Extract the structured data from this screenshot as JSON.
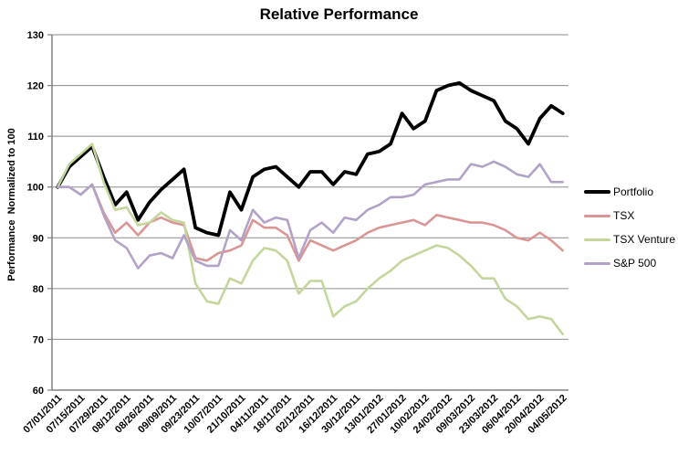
{
  "chart_data": {
    "type": "line",
    "title": "Relative Performance",
    "ylabel": "Performance  Normalized to 100",
    "ylim": [
      60,
      130
    ],
    "yticks": [
      60,
      70,
      80,
      90,
      100,
      110,
      120,
      130
    ],
    "n_points": 45,
    "x_label_every": 2,
    "x_tick_labels": [
      "07/01/2011",
      "07/15/2011",
      "07/29/2011",
      "08/12/2011",
      "08/26/2011",
      "09/09/2011",
      "09/23/2011",
      "10/07/2011",
      "21/10/2011",
      "04/11/2011",
      "18/11/2011",
      "02/12/2011",
      "16/12/2011",
      "30/12/2011",
      "13/01/2012",
      "27/01/2012",
      "10/02/2012",
      "24/02/2012",
      "09/03/2012",
      "23/03/2012",
      "06/04/2012",
      "20/04/2012",
      "04/05/2012"
    ],
    "grid": "horizontal",
    "legend_position": "right",
    "axis_color": "#808080",
    "grid_color": "#8C8C8C",
    "text_color": "#000000",
    "series": [
      {
        "name": "Portfolio",
        "color": "#000000",
        "stroke_width": 3.8,
        "values": [
          100,
          104,
          106,
          108,
          102,
          96.5,
          99,
          93.5,
          97,
          99.5,
          101.5,
          103.5,
          92,
          91,
          90.5,
          99,
          95.5,
          102,
          103.5,
          104,
          102,
          100,
          103,
          103,
          100.5,
          103,
          102.5,
          106.5,
          107,
          108.5,
          114.5,
          111.5,
          113,
          119,
          120,
          120.5,
          119,
          118,
          117,
          113,
          111.5,
          108.5,
          113.5,
          116,
          114.5
        ]
      },
      {
        "name": "TSX",
        "color": "#D99694",
        "stroke_width": 2.6,
        "values": [
          100,
          100,
          98.5,
          100.5,
          95,
          91,
          93,
          90.5,
          93,
          94,
          93,
          92.5,
          86,
          85.5,
          87,
          87.5,
          88.5,
          93.5,
          92,
          92,
          90.5,
          85.5,
          89.5,
          88.5,
          87.5,
          88.5,
          89.5,
          91,
          92,
          92.5,
          93,
          93.5,
          92.5,
          94.5,
          94,
          93.5,
          93,
          93,
          92.5,
          91.5,
          90,
          89.5,
          91,
          89.5,
          87.5
        ]
      },
      {
        "name": "TSX Venture",
        "color": "#C3D69B",
        "stroke_width": 2.6,
        "values": [
          100,
          104.5,
          106.5,
          108.5,
          101,
          95.5,
          96,
          92.5,
          93,
          95,
          93.5,
          93,
          81,
          77.5,
          77,
          82,
          81,
          85.5,
          88,
          87.5,
          85.5,
          79,
          81.5,
          81.5,
          74.5,
          76.5,
          77.5,
          80,
          82,
          83.5,
          85.5,
          86.5,
          87.5,
          88.5,
          88,
          86.5,
          84.5,
          82,
          82,
          78,
          76.5,
          74,
          74.5,
          74,
          71
        ]
      },
      {
        "name": "S&P 500",
        "color": "#B2A2C7",
        "stroke_width": 2.6,
        "values": [
          100,
          100,
          98.5,
          100.5,
          94.5,
          89.5,
          88,
          84,
          86.5,
          87,
          86,
          90.5,
          85.5,
          84.5,
          84.5,
          91.5,
          89.5,
          95.5,
          93,
          94,
          93.5,
          86,
          91.5,
          93,
          91,
          94,
          93.5,
          95.5,
          96.5,
          98,
          98,
          98.5,
          100.5,
          101,
          101.5,
          101.5,
          104.5,
          104,
          105,
          104,
          102.5,
          102,
          104.5,
          101,
          101
        ]
      }
    ]
  }
}
